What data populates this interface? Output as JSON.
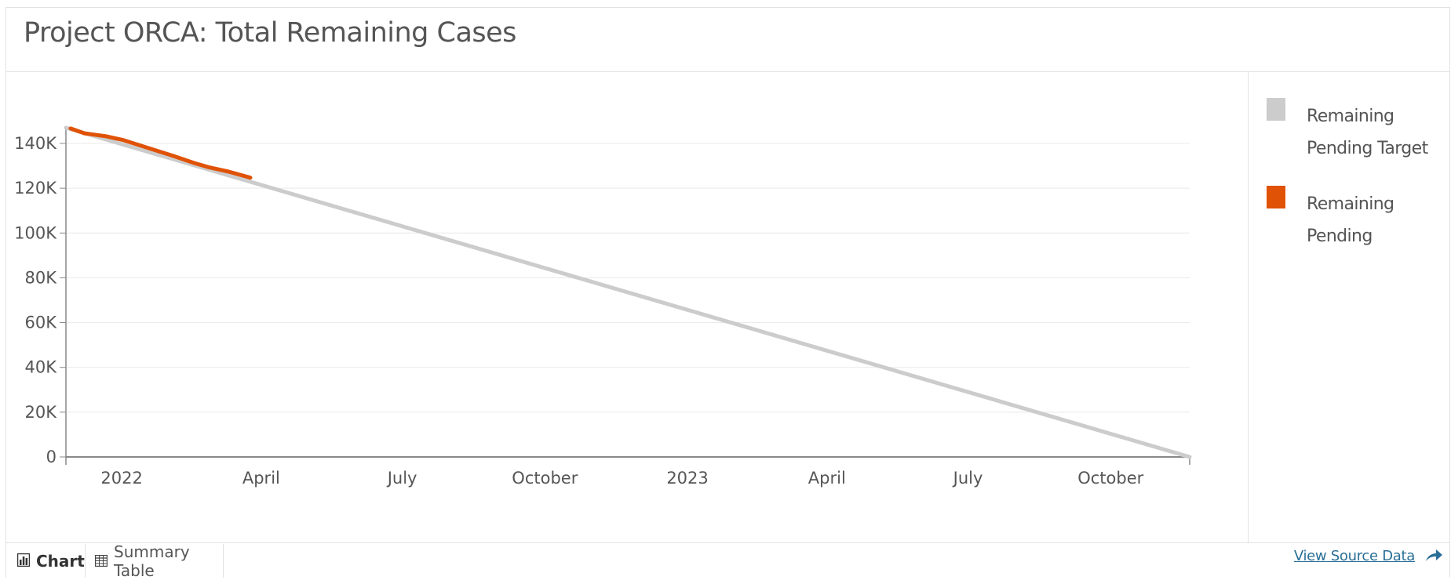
{
  "title": "Project ORCA: Total Remaining Cases",
  "tabs": [
    {
      "label": "Chart",
      "icon": "bar-chart-icon",
      "active": true
    },
    {
      "label": "Summary Table",
      "icon": "table-icon",
      "active": false
    }
  ],
  "source_link": "View Source Data",
  "colors": {
    "target": "#cccccc",
    "pending": "#e05206",
    "axis": "#888888",
    "grid": "#e9e9e9"
  },
  "chart_data": {
    "type": "line",
    "title": "Project ORCA: Total Remaining Cases",
    "xlabel": "",
    "ylabel": "",
    "xlim": [
      "2021-11-26",
      "2023-11-21"
    ],
    "ylim": [
      0,
      147000
    ],
    "y_ticks": [
      0,
      20000,
      40000,
      60000,
      80000,
      100000,
      120000,
      140000
    ],
    "y_tick_labels": [
      "0",
      "20K",
      "40K",
      "60K",
      "80K",
      "100K",
      "120K",
      "140K"
    ],
    "x_ticks": [
      "2022-01-01",
      "2022-04-01",
      "2022-07-01",
      "2022-10-01",
      "2023-01-01",
      "2023-04-01",
      "2023-07-01",
      "2023-10-01"
    ],
    "x_tick_labels": [
      "2022",
      "April",
      "July",
      "October",
      "2023",
      "April",
      "July",
      "October"
    ],
    "grid": true,
    "legend_position": "right",
    "series": [
      {
        "name": "Remaining Pending Target",
        "color": "#cccccc",
        "x": [
          "2021-11-26",
          "2023-11-21"
        ],
        "y": [
          147000,
          0
        ]
      },
      {
        "name": "Remaining Pending",
        "color": "#e05206",
        "x": [
          "2021-11-29",
          "2021-12-08",
          "2021-12-22",
          "2022-01-02",
          "2022-01-17",
          "2022-02-03",
          "2022-02-17",
          "2022-02-26",
          "2022-03-11",
          "2022-03-25"
        ],
        "y": [
          146700,
          144500,
          143200,
          141500,
          138200,
          134500,
          131200,
          129400,
          127400,
          124700
        ]
      }
    ]
  }
}
